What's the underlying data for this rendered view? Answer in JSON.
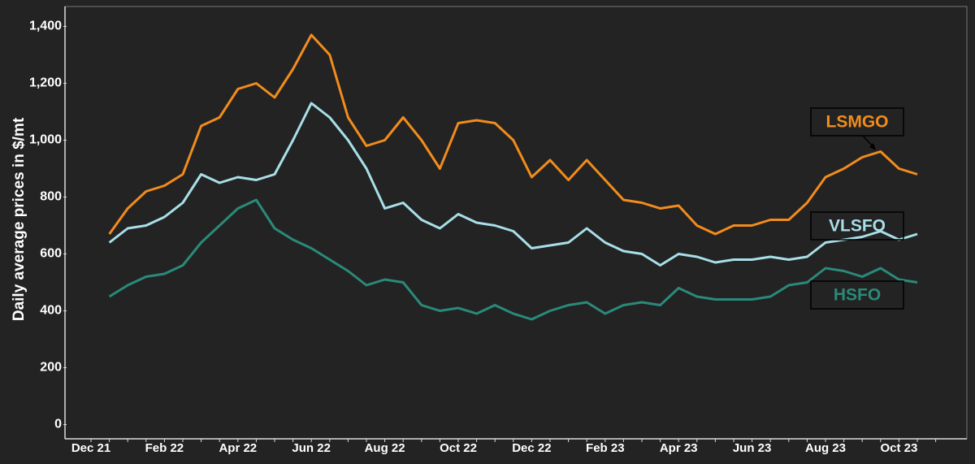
{
  "chart_data": {
    "type": "line",
    "y_label": "Daily average prices in $/mt",
    "categories": [
      "Dec 21",
      null,
      null,
      null,
      "Feb 22",
      null,
      null,
      null,
      "Apr 22",
      null,
      null,
      null,
      "Jun 22",
      null,
      null,
      null,
      "Aug 22",
      null,
      null,
      null,
      "Oct 22",
      null,
      null,
      null,
      "Dec 22",
      null,
      null,
      null,
      "Feb 23",
      null,
      null,
      null,
      "Apr 23",
      null,
      null,
      null,
      "Jun 23",
      null,
      null,
      null,
      "Aug 23",
      null,
      null,
      null,
      "Oct 23",
      null,
      null
    ],
    "series": [
      {
        "name": "LSMGO",
        "color": "#f28c1c",
        "values": [
          null,
          670,
          760,
          820,
          840,
          880,
          1050,
          1080,
          1180,
          1200,
          1150,
          1250,
          1370,
          1300,
          1080,
          980,
          1000,
          1080,
          1000,
          900,
          1060,
          1070,
          1060,
          1000,
          870,
          930,
          860,
          930,
          860,
          790,
          780,
          760,
          770,
          700,
          670,
          700,
          700,
          720,
          720,
          780,
          870,
          900,
          940,
          960,
          900,
          880,
          null
        ]
      },
      {
        "name": "VLSFO",
        "color": "#a8dfe8",
        "values": [
          null,
          640,
          690,
          700,
          730,
          780,
          880,
          850,
          870,
          860,
          880,
          1000,
          1130,
          1080,
          1000,
          900,
          760,
          780,
          720,
          690,
          740,
          710,
          700,
          680,
          620,
          630,
          640,
          690,
          640,
          610,
          600,
          560,
          600,
          590,
          570,
          580,
          580,
          590,
          580,
          590,
          640,
          650,
          660,
          680,
          650,
          670,
          null
        ]
      },
      {
        "name": "HSFO",
        "color": "#2a8a7a",
        "values": [
          null,
          450,
          490,
          520,
          530,
          560,
          640,
          700,
          760,
          790,
          690,
          650,
          620,
          580,
          540,
          490,
          510,
          500,
          420,
          400,
          410,
          390,
          420,
          390,
          370,
          400,
          420,
          430,
          390,
          420,
          430,
          420,
          480,
          450,
          440,
          440,
          440,
          450,
          490,
          500,
          550,
          540,
          520,
          550,
          510,
          500,
          null
        ]
      }
    ],
    "ylim": [
      -50,
      1470
    ],
    "yticks": [
      0,
      200,
      400,
      600,
      800,
      {
        "value": 1000,
        "label": "1,000"
      },
      {
        "value": 1200,
        "label": "1,200"
      },
      {
        "value": 1400,
        "label": "1,400"
      }
    ],
    "grid": false
  }
}
